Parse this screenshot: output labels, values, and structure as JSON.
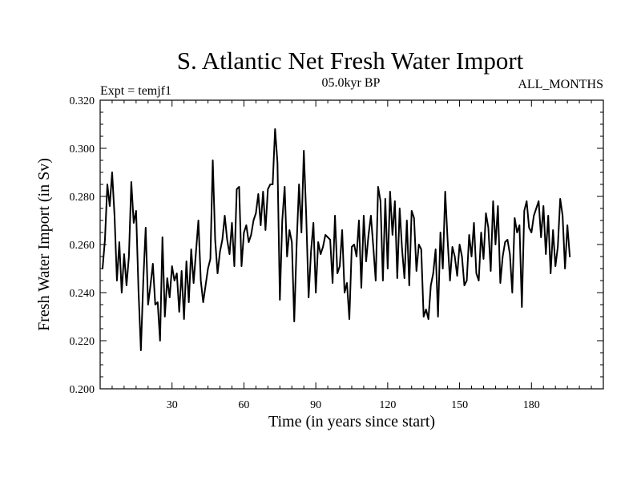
{
  "chart_data": {
    "type": "line",
    "title": "S. Atlantic Net Fresh Water Import",
    "subtitle_left": "Expt = temjf1",
    "subtitle_center": "05.0kyr BP",
    "subtitle_right": "ALL_MONTHS",
    "xlabel": "Time (in years since start)",
    "ylabel": "Fresh Water Import (in Sv)",
    "xlim": [
      0,
      210
    ],
    "ylim": [
      0.2,
      0.32
    ],
    "xticks": [
      30,
      60,
      90,
      120,
      150,
      180
    ],
    "xtick_labels": [
      "30",
      "60",
      "90",
      "120",
      "150",
      "180"
    ],
    "yticks": [
      0.2,
      0.22,
      0.24,
      0.26,
      0.28,
      0.3,
      0.32
    ],
    "ytick_labels": [
      "0.200",
      "0.220",
      "0.240",
      "0.260",
      "0.280",
      "0.300",
      "0.320"
    ],
    "series": [
      {
        "name": "fresh water import",
        "color": "#000000",
        "x_start": 1,
        "x_step": 1,
        "values": [
          0.25,
          0.262,
          0.285,
          0.276,
          0.29,
          0.272,
          0.245,
          0.261,
          0.24,
          0.256,
          0.243,
          0.255,
          0.286,
          0.269,
          0.274,
          0.241,
          0.216,
          0.245,
          0.267,
          0.235,
          0.243,
          0.252,
          0.235,
          0.236,
          0.22,
          0.263,
          0.23,
          0.246,
          0.238,
          0.251,
          0.245,
          0.248,
          0.232,
          0.249,
          0.229,
          0.253,
          0.236,
          0.258,
          0.244,
          0.257,
          0.27,
          0.245,
          0.236,
          0.243,
          0.25,
          0.254,
          0.295,
          0.262,
          0.248,
          0.257,
          0.262,
          0.272,
          0.262,
          0.256,
          0.269,
          0.251,
          0.283,
          0.284,
          0.251,
          0.265,
          0.268,
          0.261,
          0.264,
          0.27,
          0.273,
          0.281,
          0.268,
          0.282,
          0.266,
          0.283,
          0.285,
          0.285,
          0.308,
          0.294,
          0.237,
          0.27,
          0.284,
          0.255,
          0.266,
          0.261,
          0.228,
          0.26,
          0.285,
          0.265,
          0.299,
          0.272,
          0.238,
          0.257,
          0.269,
          0.24,
          0.261,
          0.256,
          0.259,
          0.264,
          0.263,
          0.262,
          0.244,
          0.272,
          0.248,
          0.251,
          0.266,
          0.24,
          0.244,
          0.229,
          0.259,
          0.26,
          0.255,
          0.27,
          0.242,
          0.272,
          0.253,
          0.264,
          0.272,
          0.259,
          0.245,
          0.284,
          0.278,
          0.245,
          0.279,
          0.25,
          0.282,
          0.264,
          0.278,
          0.246,
          0.275,
          0.258,
          0.246,
          0.27,
          0.243,
          0.274,
          0.271,
          0.249,
          0.26,
          0.258,
          0.23,
          0.233,
          0.229,
          0.243,
          0.248,
          0.258,
          0.23,
          0.265,
          0.25,
          0.282,
          0.262,
          0.245,
          0.259,
          0.255,
          0.247,
          0.26,
          0.255,
          0.243,
          0.245,
          0.264,
          0.255,
          0.269,
          0.248,
          0.245,
          0.265,
          0.254,
          0.273,
          0.267,
          0.249,
          0.278,
          0.26,
          0.276,
          0.244,
          0.255,
          0.261,
          0.262,
          0.256,
          0.24,
          0.271,
          0.265,
          0.268,
          0.234,
          0.274,
          0.278,
          0.267,
          0.265,
          0.272,
          0.275,
          0.278,
          0.263,
          0.276,
          0.256,
          0.272,
          0.248,
          0.266,
          0.251,
          0.259,
          0.279,
          0.272,
          0.25,
          0.268,
          0.255
        ]
      }
    ]
  }
}
